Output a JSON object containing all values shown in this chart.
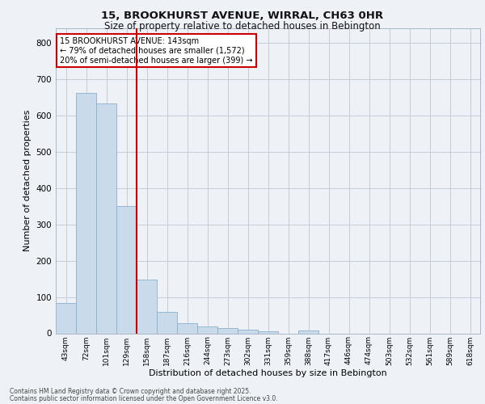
{
  "title_line1": "15, BROOKHURST AVENUE, WIRRAL, CH63 0HR",
  "title_line2": "Size of property relative to detached houses in Bebington",
  "xlabel": "Distribution of detached houses by size in Bebington",
  "ylabel": "Number of detached properties",
  "categories": [
    "43sqm",
    "72sqm",
    "101sqm",
    "129sqm",
    "158sqm",
    "187sqm",
    "216sqm",
    "244sqm",
    "273sqm",
    "302sqm",
    "331sqm",
    "359sqm",
    "388sqm",
    "417sqm",
    "446sqm",
    "474sqm",
    "503sqm",
    "532sqm",
    "561sqm",
    "589sqm",
    "618sqm"
  ],
  "values": [
    83,
    662,
    632,
    350,
    148,
    60,
    27,
    20,
    15,
    10,
    5,
    0,
    7,
    0,
    0,
    0,
    0,
    0,
    0,
    0,
    0
  ],
  "bar_color": "#c9daea",
  "bar_edge_color": "#8ab0cc",
  "vline_x_index": 3,
  "vline_color": "#cc0000",
  "annotation_text": "15 BROOKHURST AVENUE: 143sqm\n← 79% of detached houses are smaller (1,572)\n20% of semi-detached houses are larger (399) →",
  "annotation_box_color": "#cc0000",
  "ylim": [
    0,
    840
  ],
  "yticks": [
    0,
    100,
    200,
    300,
    400,
    500,
    600,
    700,
    800
  ],
  "bg_color": "#eef2f7",
  "grid_color": "#c4cdd8",
  "footer_line1": "Contains HM Land Registry data © Crown copyright and database right 2025.",
  "footer_line2": "Contains public sector information licensed under the Open Government Licence v3.0."
}
